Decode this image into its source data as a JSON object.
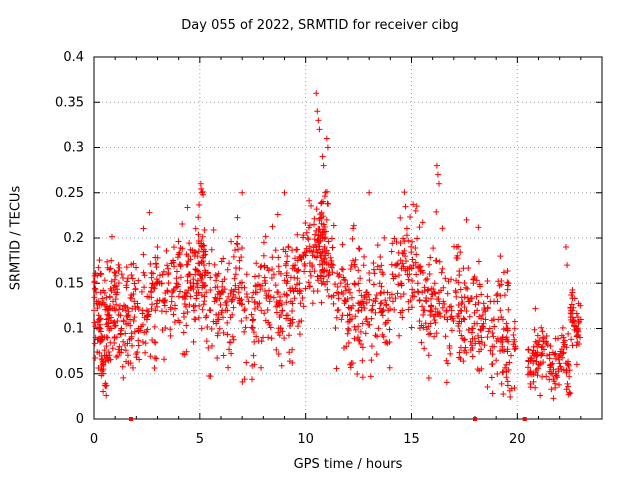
{
  "chart_data": {
    "type": "scatter",
    "title": "Day 055 of 2022, SRMTID for receiver cibg",
    "xlabel": "GPS time / hours",
    "ylabel": "SRMTID / TECUs",
    "xlim": [
      0,
      24
    ],
    "ylim": [
      0,
      0.4
    ],
    "x_ticks": [
      0,
      5,
      10,
      15,
      20
    ],
    "y_ticks": [
      0,
      0.05,
      0.1,
      0.15,
      0.2,
      0.25,
      0.3,
      0.35,
      0.4
    ],
    "x_tick_labels": [
      "0",
      "5",
      "10",
      "15",
      "20"
    ],
    "y_tick_labels": [
      "0",
      "0.05",
      "0.1",
      "0.15",
      "0.2",
      "0.25",
      "0.3",
      "0.35",
      "0.4"
    ],
    "grid": true,
    "marker": "+",
    "color": "#ff0000",
    "gap_markers_x": [
      1.75,
      18.0,
      20.35
    ],
    "series": [
      {
        "name": "SRMTID",
        "x": [
          0.0,
          0.1,
          0.2,
          0.3,
          0.4,
          0.5,
          0.6,
          0.7,
          0.8,
          0.9,
          1.0,
          1.1,
          1.2,
          1.3,
          1.5,
          1.7,
          1.9,
          2.1,
          2.3,
          2.5,
          2.7,
          2.9,
          3.1,
          3.3,
          3.5,
          3.7,
          3.9,
          4.1,
          4.3,
          4.5,
          4.7,
          4.9,
          5.0,
          5.1,
          5.2,
          5.3,
          5.5,
          5.7,
          5.9,
          6.1,
          6.3,
          6.5,
          6.7,
          6.9,
          7.1,
          7.3,
          7.5,
          7.7,
          7.9,
          8.1,
          8.3,
          8.5,
          8.7,
          8.9,
          9.1,
          9.3,
          9.5,
          9.7,
          9.9,
          10.1,
          10.3,
          10.5,
          10.6,
          10.7,
          10.8,
          10.9,
          11.0,
          11.1,
          11.3,
          11.5,
          11.7,
          11.9,
          12.1,
          12.3,
          12.5,
          12.7,
          12.9,
          13.1,
          13.3,
          13.5,
          13.7,
          13.9,
          14.1,
          14.3,
          14.5,
          14.7,
          14.9,
          15.1,
          15.3,
          15.5,
          15.7,
          15.9,
          16.1,
          16.3,
          16.5,
          16.7,
          16.9,
          17.1,
          17.3,
          17.5,
          17.7,
          17.9,
          18.1,
          18.3,
          18.5,
          18.7,
          18.9,
          19.1,
          19.3,
          19.5,
          19.7,
          19.9,
          20.6,
          20.8,
          21.0,
          21.2,
          21.4,
          21.6,
          21.8,
          22.0,
          22.2,
          22.4,
          22.6,
          22.8,
          23.0,
          10.5,
          10.55,
          10.6,
          10.65,
          10.8,
          10.85,
          11.0,
          11.05,
          16.2,
          16.25,
          16.3,
          5.05,
          5.1,
          0.3,
          3.0,
          7.0,
          9.0,
          13.0,
          15.2,
          17.6,
          19.2,
          22.3,
          22.35
        ],
        "y": [
          0.12,
          0.14,
          0.13,
          0.1,
          0.09,
          0.07,
          0.11,
          0.12,
          0.1,
          0.13,
          0.12,
          0.14,
          0.08,
          0.1,
          0.12,
          0.11,
          0.13,
          0.1,
          0.12,
          0.11,
          0.14,
          0.12,
          0.15,
          0.13,
          0.16,
          0.14,
          0.15,
          0.17,
          0.14,
          0.16,
          0.15,
          0.18,
          0.16,
          0.19,
          0.17,
          0.14,
          0.12,
          0.13,
          0.11,
          0.14,
          0.12,
          0.13,
          0.16,
          0.15,
          0.12,
          0.13,
          0.11,
          0.14,
          0.12,
          0.15,
          0.13,
          0.16,
          0.14,
          0.12,
          0.15,
          0.13,
          0.17,
          0.15,
          0.18,
          0.2,
          0.17,
          0.19,
          0.21,
          0.18,
          0.2,
          0.19,
          0.22,
          0.16,
          0.17,
          0.12,
          0.14,
          0.13,
          0.11,
          0.15,
          0.12,
          0.13,
          0.14,
          0.12,
          0.13,
          0.15,
          0.14,
          0.12,
          0.16,
          0.17,
          0.15,
          0.18,
          0.16,
          0.17,
          0.15,
          0.14,
          0.13,
          0.12,
          0.15,
          0.14,
          0.13,
          0.11,
          0.12,
          0.14,
          0.12,
          0.11,
          0.13,
          0.1,
          0.12,
          0.09,
          0.11,
          0.1,
          0.08,
          0.11,
          0.09,
          0.1,
          0.07,
          0.08,
          0.05,
          0.07,
          0.06,
          0.08,
          0.07,
          0.06,
          0.05,
          0.07,
          0.08,
          0.06,
          0.12,
          0.1,
          0.11,
          0.36,
          0.34,
          0.33,
          0.32,
          0.29,
          0.28,
          0.31,
          0.3,
          0.28,
          0.27,
          0.26,
          0.26,
          0.25,
          0.16,
          0.19,
          0.25,
          0.25,
          0.25,
          0.23,
          0.22,
          0.18,
          0.19,
          0.17
        ],
        "scatter_count": 1600,
        "scatter_seed": 20220255
      }
    ]
  }
}
